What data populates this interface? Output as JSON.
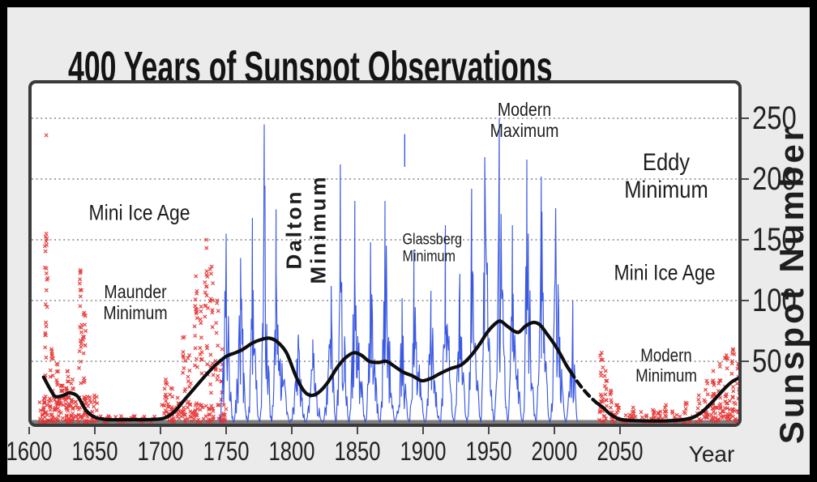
{
  "colors": {
    "background": "#ebebeb",
    "frame_border": "#000000",
    "plot_border": "#3b3b3b",
    "plot_background": "#ffffff",
    "grid": "#9a9a9a",
    "axis_baseline": "#7d7d7d",
    "tick": "#4a4a4a",
    "red_markers": "#e62e2e",
    "blue_series": "#2f4fe0",
    "black_trend": "#0d0d0d",
    "text": "#1d1d1d"
  },
  "chart_data": {
    "type": "composite",
    "title": "400 Years of Sunspot Observations",
    "xlabel": "Year",
    "ylabel": "Sunspot Number",
    "xlim": [
      1600,
      2140
    ],
    "ylim": [
      0,
      280
    ],
    "x_ticks": [
      1600,
      1650,
      1700,
      1750,
      1800,
      1850,
      1900,
      1950,
      2000,
      2050
    ],
    "y_ticks": [
      50,
      100,
      150,
      200,
      250
    ],
    "grid": "horizontal dotted lines at each y tick",
    "legend": "none",
    "series": [
      {
        "name": "early sunspot observations 1600-1750 (red x markers)",
        "type": "scatter",
        "marker": "x",
        "color": "#e62e2e",
        "columns_year_max_count": [
          [
            1613,
            155,
            26
          ],
          [
            1617,
            60,
            12
          ],
          [
            1621,
            48,
            12
          ],
          [
            1625,
            30,
            8
          ],
          [
            1629,
            42,
            10
          ],
          [
            1633,
            35,
            8
          ],
          [
            1639,
            125,
            20
          ],
          [
            1642,
            90,
            14
          ],
          [
            1704,
            35,
            10
          ],
          [
            1708,
            28,
            8
          ],
          [
            1713,
            20,
            6
          ],
          [
            1718,
            70,
            12
          ],
          [
            1722,
            55,
            10
          ],
          [
            1727,
            120,
            16
          ],
          [
            1731,
            95,
            12
          ],
          [
            1735,
            150,
            18
          ],
          [
            1739,
            128,
            16
          ],
          [
            1743,
            100,
            12
          ],
          [
            1747,
            60,
            8
          ]
        ],
        "low_bands_start_end_max_count": [
          [
            1608,
            1652,
            22,
            150
          ],
          [
            1653,
            1698,
            5,
            40
          ],
          [
            1700,
            1750,
            16,
            90
          ]
        ],
        "outlier_points": [
          [
            1613,
            236
          ]
        ]
      },
      {
        "name": "observed sunspot number 1745-2017 (blue, ~11 yr cycles)",
        "type": "line",
        "color": "#2f4fe0",
        "cycles_start_peakyear_end_peakvalue": [
          [
            1745,
            1750,
            1755.5,
            155
          ],
          [
            1755.5,
            1761,
            1766.5,
            135
          ],
          [
            1766.5,
            1770,
            1775.5,
            168
          ],
          [
            1775.5,
            1779,
            1784.5,
            245
          ],
          [
            1784.5,
            1788,
            1798.5,
            175
          ],
          [
            1798.5,
            1805,
            1810.5,
            72
          ],
          [
            1810.5,
            1816,
            1823.5,
            68
          ],
          [
            1823.5,
            1830,
            1833.5,
            112
          ],
          [
            1833.5,
            1837,
            1843.5,
            212
          ],
          [
            1843.5,
            1848,
            1856,
            182
          ],
          [
            1856,
            1860,
            1867,
            148
          ],
          [
            1867,
            1871,
            1878.5,
            182
          ],
          [
            1878.5,
            1884,
            1889.5,
            102
          ],
          [
            1889.5,
            1893,
            1901.5,
            142
          ],
          [
            1901.5,
            1906,
            1913,
            108
          ],
          [
            1913,
            1917,
            1923.5,
            162
          ],
          [
            1923.5,
            1928,
            1933.5,
            122
          ],
          [
            1933.5,
            1937,
            1944,
            192
          ],
          [
            1944,
            1947,
            1954,
            218
          ],
          [
            1954,
            1958,
            1964.5,
            250
          ],
          [
            1964.5,
            1968,
            1976,
            162
          ],
          [
            1976,
            1979,
            1986,
            216
          ],
          [
            1986,
            1990,
            1996.5,
            202
          ],
          [
            1996.5,
            2001,
            2008.5,
            176
          ],
          [
            2008.5,
            2014,
            2017.5,
            100
          ]
        ],
        "stray_segment": {
          "year": 1886,
          "from": 210,
          "to": 237
        }
      },
      {
        "name": "smoothed sunspot trend (black)",
        "type": "line",
        "color": "#0d0d0d",
        "solid_points_1611_2012": [
          [
            1611,
            37
          ],
          [
            1616,
            27
          ],
          [
            1620,
            21
          ],
          [
            1626,
            22
          ],
          [
            1631,
            24
          ],
          [
            1637,
            21
          ],
          [
            1643,
            10
          ],
          [
            1650,
            4
          ],
          [
            1660,
            2
          ],
          [
            1675,
            2
          ],
          [
            1690,
            2
          ],
          [
            1702,
            3
          ],
          [
            1710,
            8
          ],
          [
            1718,
            18
          ],
          [
            1726,
            28
          ],
          [
            1734,
            38
          ],
          [
            1742,
            47
          ],
          [
            1750,
            54
          ],
          [
            1757,
            57
          ],
          [
            1763,
            60
          ],
          [
            1770,
            65
          ],
          [
            1777,
            68
          ],
          [
            1783,
            69
          ],
          [
            1789,
            66
          ],
          [
            1796,
            57
          ],
          [
            1803,
            38
          ],
          [
            1809,
            26
          ],
          [
            1814,
            22
          ],
          [
            1820,
            24
          ],
          [
            1827,
            32
          ],
          [
            1834,
            44
          ],
          [
            1840,
            52
          ],
          [
            1847,
            57
          ],
          [
            1853,
            55
          ],
          [
            1859,
            50
          ],
          [
            1866,
            49
          ],
          [
            1872,
            50
          ],
          [
            1878,
            46
          ],
          [
            1885,
            41
          ],
          [
            1892,
            38
          ],
          [
            1899,
            34
          ],
          [
            1906,
            36
          ],
          [
            1913,
            40
          ],
          [
            1921,
            44
          ],
          [
            1929,
            47
          ],
          [
            1936,
            54
          ],
          [
            1943,
            64
          ],
          [
            1949,
            74
          ],
          [
            1955,
            81
          ],
          [
            1959,
            83
          ],
          [
            1964,
            79
          ],
          [
            1969,
            75
          ],
          [
            1973,
            74
          ],
          [
            1978,
            79
          ],
          [
            1984,
            82
          ],
          [
            1989,
            80
          ],
          [
            1994,
            73
          ],
          [
            2000,
            64
          ],
          [
            2005,
            55
          ],
          [
            2009,
            47
          ],
          [
            2012,
            42
          ]
        ],
        "dashed_points_2012_2032": [
          [
            2012,
            42
          ],
          [
            2017,
            34
          ],
          [
            2022,
            27
          ],
          [
            2027,
            21
          ],
          [
            2032,
            16
          ]
        ],
        "solid_points_2032_2140": [
          [
            2032,
            16
          ],
          [
            2037,
            12
          ],
          [
            2042,
            7
          ],
          [
            2048,
            3
          ],
          [
            2055,
            1.5
          ],
          [
            2070,
            1
          ],
          [
            2085,
            1
          ],
          [
            2098,
            2
          ],
          [
            2106,
            4
          ],
          [
            2112,
            8
          ],
          [
            2118,
            14
          ],
          [
            2124,
            21
          ],
          [
            2130,
            28
          ],
          [
            2135,
            33
          ],
          [
            2140,
            36
          ]
        ]
      },
      {
        "name": "future observations / prediction 2035-2140 (red x markers)",
        "type": "scatter",
        "marker": "x",
        "color": "#e62e2e",
        "columns_year_max_count": [
          [
            2036,
            57,
            14
          ],
          [
            2039,
            42,
            10
          ],
          [
            2043,
            26,
            8
          ],
          [
            2048,
            14,
            5
          ],
          [
            2060,
            12,
            5
          ],
          [
            2075,
            10,
            4
          ],
          [
            2085,
            14,
            5
          ],
          [
            2100,
            16,
            5
          ],
          [
            2110,
            22,
            6
          ],
          [
            2116,
            34,
            8
          ],
          [
            2121,
            42,
            10
          ],
          [
            2126,
            48,
            10
          ],
          [
            2131,
            55,
            12
          ],
          [
            2136,
            60,
            12
          ],
          [
            2140,
            48,
            10
          ]
        ],
        "low_bands_start_end_max_count": [
          [
            2034,
            2112,
            9,
            70
          ],
          [
            2112,
            2142,
            18,
            60
          ]
        ],
        "outlier_points": []
      }
    ],
    "annotations": [
      {
        "id": "mini-ice-age-left",
        "lines": [
          "Mini Ice Age"
        ],
        "year": 1684,
        "value": 172,
        "size": 27
      },
      {
        "id": "maunder-minimum",
        "lines": [
          "Maunder",
          "Minimum"
        ],
        "year": 1681,
        "value": 99,
        "size": 23
      },
      {
        "id": "dalton-minimum",
        "lines": [
          "Dalton",
          "Minimum"
        ],
        "year": 1811,
        "value": 159,
        "size": 26,
        "weight": 700,
        "rotate": -90,
        "ls": 3,
        "condensed": false
      },
      {
        "id": "glassberg-minimum",
        "lines": [
          "Glassberg",
          "Minimum"
        ],
        "year": 1880,
        "value": 143,
        "size": 19,
        "align": "left"
      },
      {
        "id": "modern-maximum",
        "lines": [
          "Modern",
          "Maximum"
        ],
        "year": 1977,
        "value": 249,
        "size": 23
      },
      {
        "id": "eddy-minimum",
        "lines": [
          "Eddy",
          "Minimum"
        ],
        "year": 2085,
        "value": 202,
        "size": 30
      },
      {
        "id": "mini-ice-age-right",
        "lines": [
          "Mini Ice Age"
        ],
        "year": 2084,
        "value": 123,
        "size": 27
      },
      {
        "id": "modern-minimum",
        "lines": [
          "Modern",
          "Minimum"
        ],
        "year": 2085,
        "value": 47,
        "size": 22
      }
    ]
  }
}
